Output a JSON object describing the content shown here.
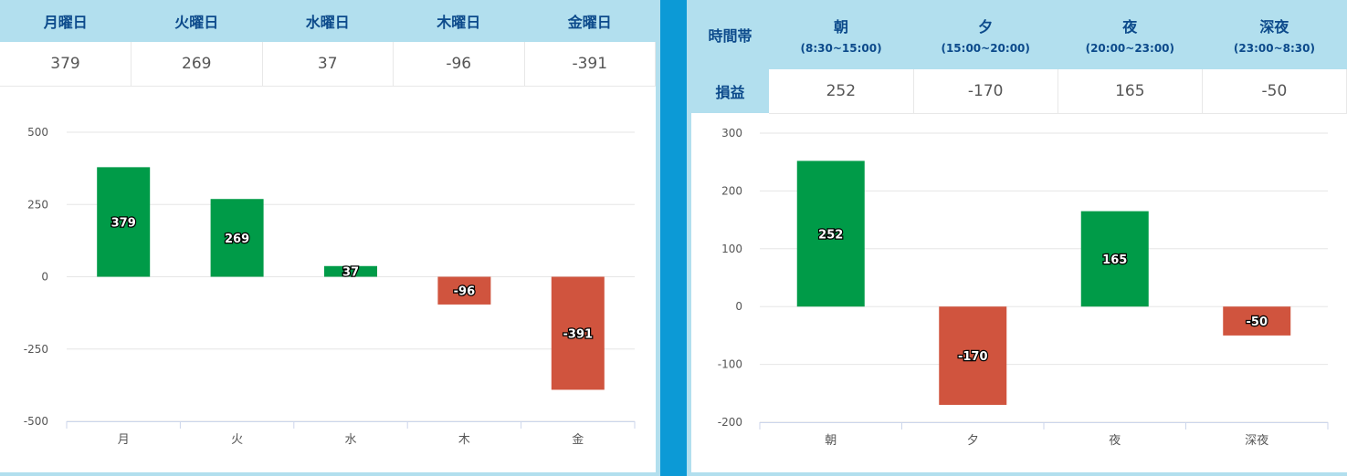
{
  "left": {
    "days": [
      {
        "label": "月曜日",
        "value": "379"
      },
      {
        "label": "火曜日",
        "value": "269"
      },
      {
        "label": "水曜日",
        "value": "37"
      },
      {
        "label": "木曜日",
        "value": "-96"
      },
      {
        "label": "金曜日",
        "value": "-391"
      }
    ]
  },
  "right": {
    "row_header": "時間帯",
    "row_label": "損益",
    "slots": [
      {
        "label": "朝",
        "range": "(8:30~15:00)",
        "value": "252"
      },
      {
        "label": "夕",
        "range": "(15:00~20:00)",
        "value": "-170"
      },
      {
        "label": "夜",
        "range": "(20:00~23:00)",
        "value": "165"
      },
      {
        "label": "深夜",
        "range": "(23:00~8:30)",
        "value": "-50"
      }
    ]
  },
  "chart_data": [
    {
      "type": "bar",
      "categories": [
        "月",
        "火",
        "水",
        "木",
        "金"
      ],
      "values": [
        379,
        269,
        37,
        -96,
        -391
      ],
      "ylim": [
        -500,
        500
      ],
      "yticks": [
        500,
        250,
        0,
        -250,
        -500
      ],
      "grid": true,
      "positive_color": "#009b48",
      "negative_color": "#d0543e"
    },
    {
      "type": "bar",
      "categories": [
        "朝",
        "夕",
        "夜",
        "深夜"
      ],
      "values": [
        252,
        -170,
        165,
        -50
      ],
      "ylim": [
        -200,
        300
      ],
      "yticks": [
        300,
        200,
        100,
        0,
        -100,
        -200
      ],
      "grid": true,
      "positive_color": "#009b48",
      "negative_color": "#d0543e"
    }
  ]
}
